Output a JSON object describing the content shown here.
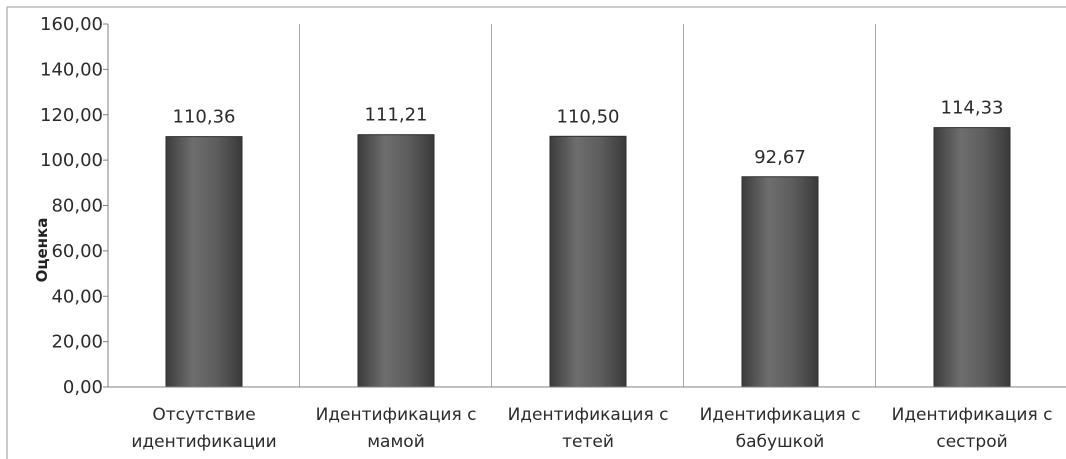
{
  "chart_data": {
    "type": "bar",
    "title": "",
    "xlabel": "",
    "ylabel": "Оценка",
    "ylim": [
      0,
      160
    ],
    "yticks": [
      "0,00",
      "20,00",
      "40,00",
      "60,00",
      "80,00",
      "100,00",
      "120,00",
      "140,00",
      "160,00"
    ],
    "categories": [
      [
        "Отсутствие",
        "идентификации"
      ],
      [
        "Идентификация с",
        "мамой"
      ],
      [
        "Идентификация с",
        "тетей"
      ],
      [
        "Идентификация с",
        "бабушкой"
      ],
      [
        "Идентификация с",
        "сестрой"
      ]
    ],
    "values": [
      110.36,
      111.21,
      110.5,
      92.67,
      114.33
    ],
    "data_labels": [
      "110,36",
      "111,21",
      "110,50",
      "92,67",
      "114,33"
    ],
    "grid": true,
    "bar_color": "#5a5a5a"
  }
}
